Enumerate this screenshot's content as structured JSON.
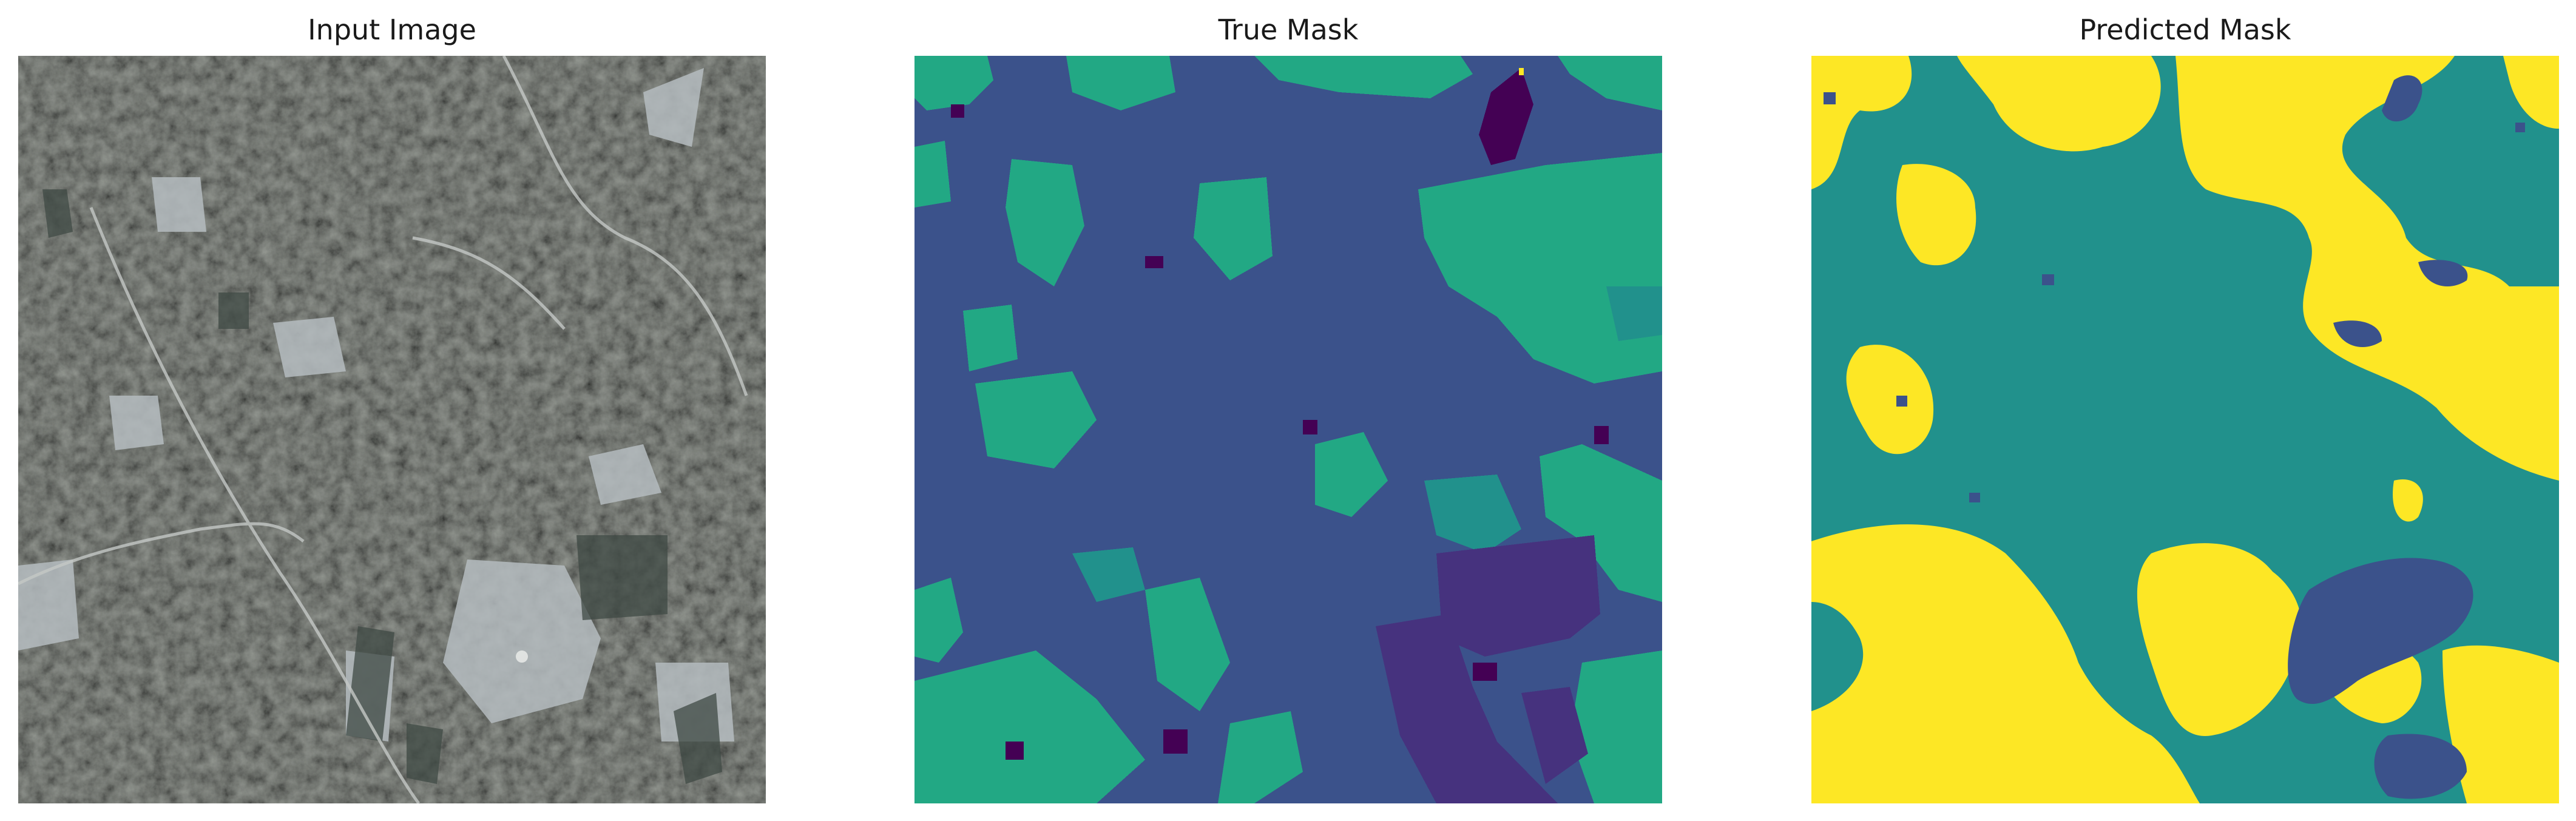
{
  "figure": {
    "panels": [
      {
        "title": "Input Image"
      },
      {
        "title": "True Mask"
      },
      {
        "title": "Predicted Mask"
      }
    ]
  },
  "colors": {
    "background": "#ffffff",
    "satellite_base": "#8a8e86",
    "viridis_dark_purple": "#440154",
    "viridis_purple": "#46327e",
    "viridis_blue": "#3b528b",
    "viridis_teal": "#21918c",
    "viridis_green": "#22a884",
    "viridis_yellow": "#fde725"
  }
}
